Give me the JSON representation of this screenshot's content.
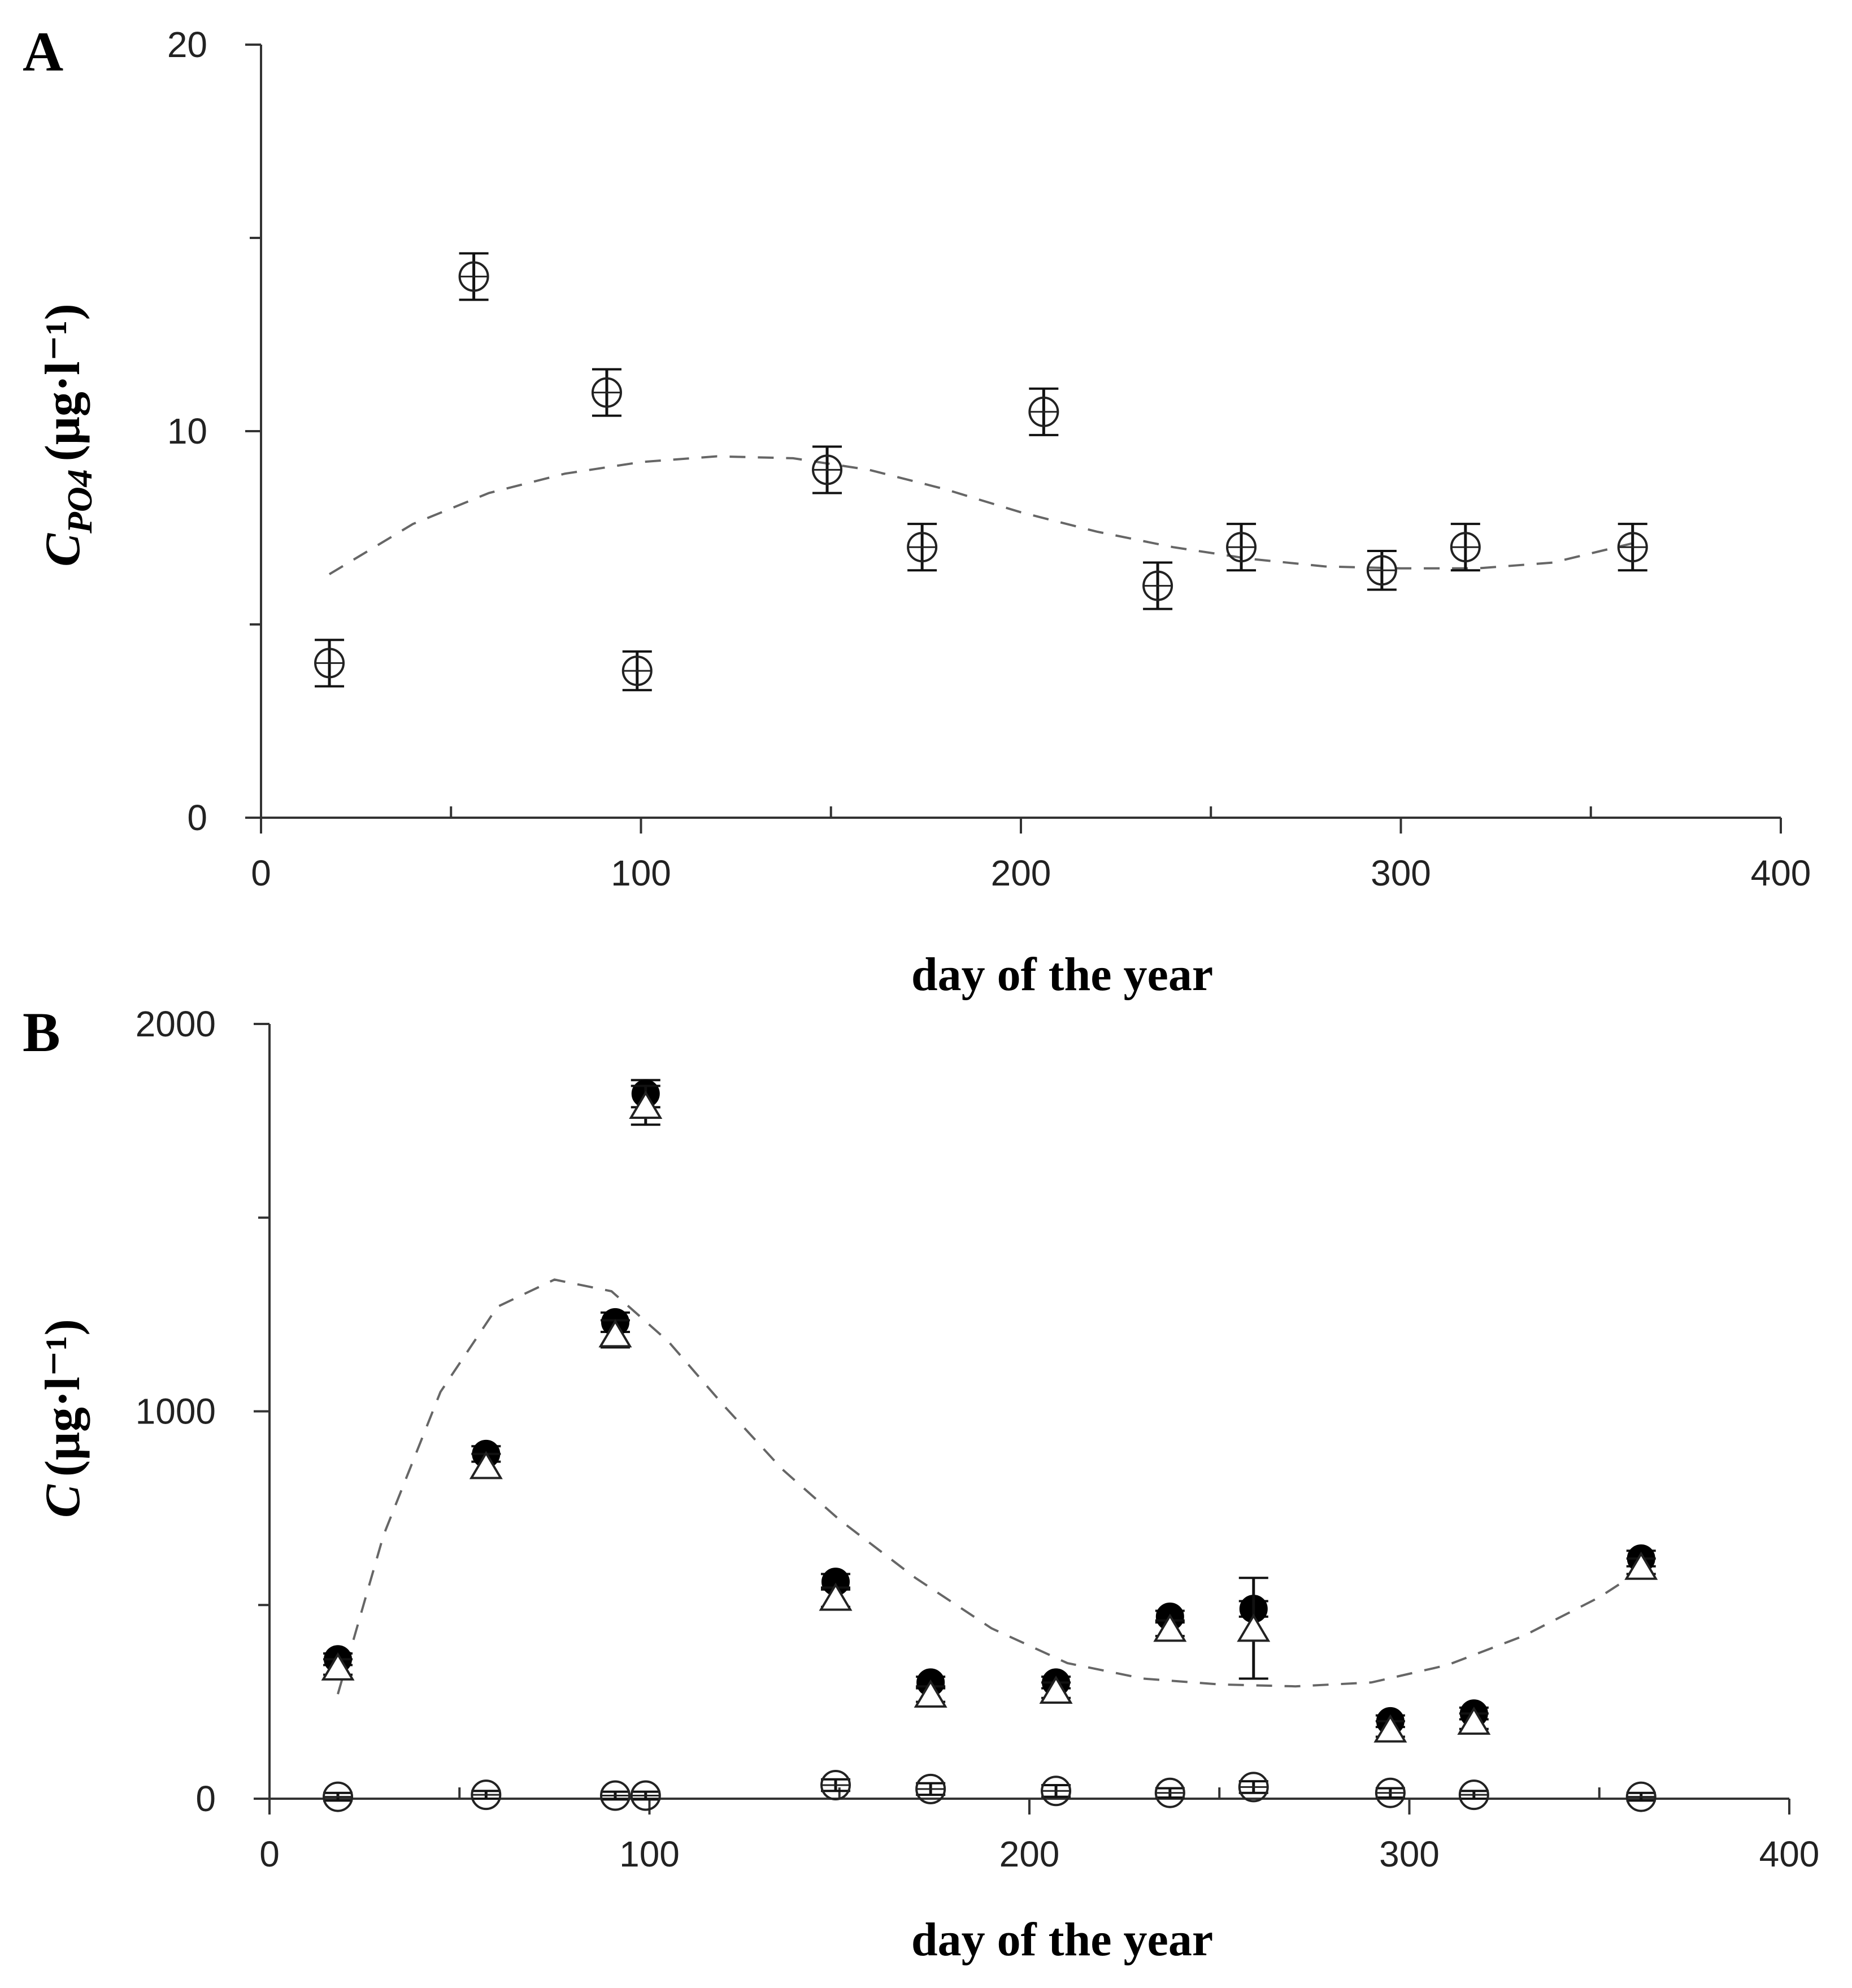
{
  "chart_data": [
    {
      "type": "scatter",
      "panel_label": "A",
      "xlabel": "day of the year",
      "ylabel": {
        "symbol": "C",
        "subscript": "PO4",
        "unit": "(μg·l⁻¹)"
      },
      "xlim": [
        0,
        400
      ],
      "ylim": [
        0,
        20
      ],
      "x_ticks": [
        "0",
        "100",
        "200",
        "300",
        "400"
      ],
      "y_ticks": [
        "0",
        "10",
        "20"
      ],
      "grid": false,
      "series": [
        {
          "marker": "open-circle",
          "points": [
            {
              "x": 18,
              "y": 4.0,
              "err": 0.6
            },
            {
              "x": 56,
              "y": 14.0,
              "err": 0.6
            },
            {
              "x": 91,
              "y": 11.0,
              "err": 0.6
            },
            {
              "x": 99,
              "y": 3.8,
              "err": 0.5
            },
            {
              "x": 149,
              "y": 9.0,
              "err": 0.6
            },
            {
              "x": 174,
              "y": 7.0,
              "err": 0.6
            },
            {
              "x": 206,
              "y": 10.5,
              "err": 0.6
            },
            {
              "x": 236,
              "y": 6.0,
              "err": 0.6
            },
            {
              "x": 258,
              "y": 7.0,
              "err": 0.6
            },
            {
              "x": 295,
              "y": 6.4,
              "err": 0.5
            },
            {
              "x": 317,
              "y": 7.0,
              "err": 0.6
            },
            {
              "x": 361,
              "y": 7.0,
              "err": 0.6
            }
          ]
        }
      ],
      "fit_curve": {
        "style": "dashed",
        "x": [
          18,
          40,
          60,
          80,
          100,
          120,
          140,
          160,
          180,
          200,
          220,
          240,
          260,
          280,
          300,
          320,
          340,
          361
        ],
        "y": [
          6.3,
          7.6,
          8.4,
          8.9,
          9.2,
          9.35,
          9.3,
          9.0,
          8.5,
          7.9,
          7.4,
          7.0,
          6.7,
          6.5,
          6.45,
          6.45,
          6.6,
          7.1
        ]
      }
    },
    {
      "type": "scatter",
      "panel_label": "B",
      "xlabel": "day of the year",
      "ylabel": {
        "symbol": "C",
        "unit": "(μg·l⁻¹)"
      },
      "xlim": [
        0,
        400
      ],
      "ylim": [
        0,
        2000
      ],
      "x_ticks": [
        "0",
        "100",
        "200",
        "300",
        "400"
      ],
      "y_ticks": [
        "0",
        "1000",
        "2000"
      ],
      "grid": false,
      "series": [
        {
          "marker": "filled-circle",
          "points": [
            {
              "x": 18,
              "y": 360,
              "err": 15
            },
            {
              "x": 57,
              "y": 890,
              "err": 20
            },
            {
              "x": 91,
              "y": 1230,
              "err": 25
            },
            {
              "x": 99,
              "y": 1820,
              "err": 35
            },
            {
              "x": 149,
              "y": 560,
              "err": 20
            },
            {
              "x": 174,
              "y": 300,
              "err": 15
            },
            {
              "x": 207,
              "y": 300,
              "err": 15
            },
            {
              "x": 237,
              "y": 470,
              "err": 15
            },
            {
              "x": 259,
              "y": 490,
              "err": 20
            },
            {
              "x": 295,
              "y": 200,
              "err": 15
            },
            {
              "x": 317,
              "y": 220,
              "err": 15
            },
            {
              "x": 361,
              "y": 620,
              "err": 20
            }
          ]
        },
        {
          "marker": "open-triangle",
          "points": [
            {
              "x": 18,
              "y": 340,
              "err": 20
            },
            {
              "x": 57,
              "y": 860,
              "err": 30
            },
            {
              "x": 91,
              "y": 1200,
              "err": 35
            },
            {
              "x": 99,
              "y": 1790,
              "err": 50
            },
            {
              "x": 149,
              "y": 520,
              "err": 25
            },
            {
              "x": 174,
              "y": 270,
              "err": 20
            },
            {
              "x": 207,
              "y": 280,
              "err": 20
            },
            {
              "x": 237,
              "y": 440,
              "err": 20
            },
            {
              "x": 259,
              "y": 440,
              "err": 130
            },
            {
              "x": 295,
              "y": 180,
              "err": 20
            },
            {
              "x": 317,
              "y": 200,
              "err": 20
            },
            {
              "x": 361,
              "y": 600,
              "err": 20
            }
          ]
        },
        {
          "marker": "open-circle",
          "points": [
            {
              "x": 18,
              "y": 5,
              "err": 10
            },
            {
              "x": 57,
              "y": 10,
              "err": 10
            },
            {
              "x": 91,
              "y": 8,
              "err": 10
            },
            {
              "x": 99,
              "y": 8,
              "err": 10
            },
            {
              "x": 149,
              "y": 35,
              "err": 15
            },
            {
              "x": 174,
              "y": 25,
              "err": 15
            },
            {
              "x": 207,
              "y": 20,
              "err": 15
            },
            {
              "x": 237,
              "y": 15,
              "err": 12
            },
            {
              "x": 259,
              "y": 30,
              "err": 15
            },
            {
              "x": 295,
              "y": 15,
              "err": 12
            },
            {
              "x": 317,
              "y": 10,
              "err": 10
            },
            {
              "x": 361,
              "y": 5,
              "err": 10
            }
          ]
        }
      ],
      "fit_curve": {
        "style": "dashed",
        "x": [
          18,
          30,
          45,
          60,
          75,
          90,
          105,
          120,
          135,
          150,
          170,
          190,
          210,
          230,
          250,
          270,
          290,
          310,
          330,
          350,
          361
        ],
        "y": [
          270,
          680,
          1050,
          1270,
          1340,
          1310,
          1180,
          1010,
          850,
          720,
          570,
          440,
          350,
          310,
          295,
          290,
          300,
          345,
          420,
          520,
          590
        ]
      }
    }
  ]
}
